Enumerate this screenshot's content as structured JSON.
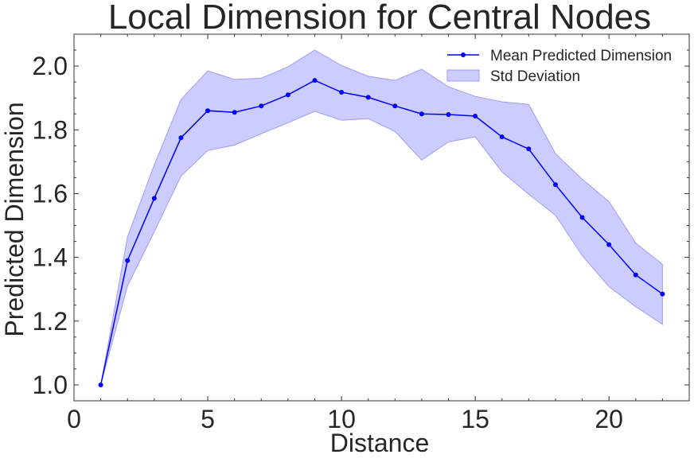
{
  "chart_data": {
    "type": "line",
    "title": "Local Dimension for Central Nodes",
    "xlabel": "Distance",
    "ylabel": "Predicted Dimension",
    "xlim": [
      0,
      23
    ],
    "ylim": [
      0.95,
      2.1
    ],
    "xticks": [
      0,
      5,
      10,
      15,
      20
    ],
    "xtick_labels": [
      "0",
      "5",
      "10",
      "15",
      "20"
    ],
    "yticks": [
      1.0,
      1.2,
      1.4,
      1.6,
      1.8,
      2.0
    ],
    "ytick_labels": [
      "1.0",
      "1.2",
      "1.4",
      "1.6",
      "1.8",
      "2.0"
    ],
    "grid": false,
    "legend_position": "top-right",
    "x": [
      1,
      2,
      3,
      4,
      5,
      6,
      7,
      8,
      9,
      10,
      11,
      12,
      13,
      14,
      15,
      16,
      17,
      18,
      19,
      20,
      21,
      22
    ],
    "series": [
      {
        "name": "Mean Predicted Dimension",
        "color": "#0000ff",
        "values": [
          1.0,
          1.39,
          1.585,
          1.775,
          1.86,
          1.855,
          1.875,
          1.91,
          1.955,
          1.918,
          1.902,
          1.875,
          1.85,
          1.848,
          1.843,
          1.778,
          1.74,
          1.628,
          1.525,
          1.44,
          1.345,
          1.285
        ]
      }
    ],
    "band": {
      "name": "Std Deviation",
      "color": "#8080ff",
      "upper": [
        1.0,
        1.465,
        1.69,
        1.895,
        1.985,
        1.958,
        1.962,
        1.998,
        2.05,
        2.002,
        1.968,
        1.955,
        1.99,
        1.935,
        1.905,
        1.888,
        1.88,
        1.725,
        1.645,
        1.575,
        1.445,
        1.378
      ],
      "lower": [
        1.0,
        1.31,
        1.48,
        1.655,
        1.735,
        1.752,
        1.788,
        1.822,
        1.858,
        1.83,
        1.835,
        1.795,
        1.705,
        1.762,
        1.778,
        1.668,
        1.598,
        1.532,
        1.405,
        1.308,
        1.245,
        1.19
      ]
    }
  }
}
